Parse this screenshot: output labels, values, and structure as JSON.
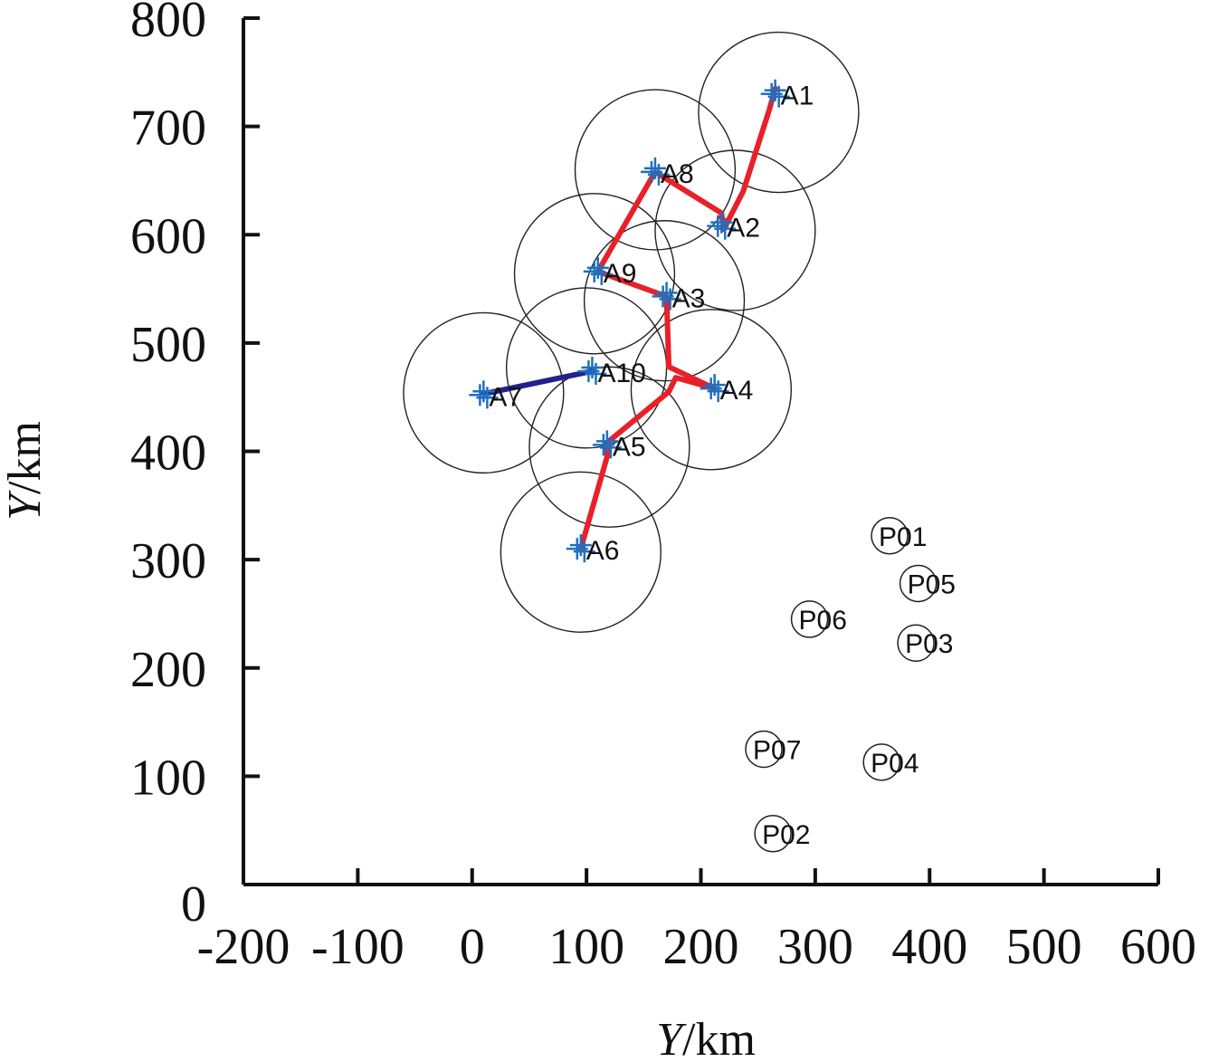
{
  "chart_data": {
    "type": "scatter",
    "xlabel_var": "Y",
    "xlabel_unit": "/km",
    "ylabel_var": "Y",
    "ylabel_unit": "/km",
    "xlim": [
      -200,
      600
    ],
    "ylim": [
      0,
      800
    ],
    "xticks": [
      "-200",
      "-100",
      "0",
      "100",
      "200",
      "300",
      "400",
      "500",
      "600"
    ],
    "yticks": [
      "0",
      "100",
      "200",
      "300",
      "400",
      "500",
      "600",
      "700",
      "800"
    ],
    "detection_radius_km": 70,
    "colors": {
      "path_main": "#e8202a",
      "path_segment": "#22228c",
      "marker": "#1f6fc0",
      "circle": "#222222"
    },
    "a_points": [
      {
        "name": "A1",
        "x": 265,
        "y": 730
      },
      {
        "name": "A2",
        "x": 218,
        "y": 608
      },
      {
        "name": "A3",
        "x": 170,
        "y": 543
      },
      {
        "name": "A4",
        "x": 212,
        "y": 458
      },
      {
        "name": "A5",
        "x": 118,
        "y": 406
      },
      {
        "name": "A6",
        "x": 95,
        "y": 310
      },
      {
        "name": "A7",
        "x": 10,
        "y": 452
      },
      {
        "name": "A8",
        "x": 160,
        "y": 658
      },
      {
        "name": "A9",
        "x": 110,
        "y": 566
      },
      {
        "name": "A10",
        "x": 105,
        "y": 474
      }
    ],
    "circles": [
      {
        "x": 268,
        "y": 713
      },
      {
        "x": 230,
        "y": 604
      },
      {
        "x": 160,
        "y": 660
      },
      {
        "x": 107,
        "y": 564
      },
      {
        "x": 168,
        "y": 539
      },
      {
        "x": 100,
        "y": 477
      },
      {
        "x": 209,
        "y": 457
      },
      {
        "x": 10,
        "y": 454
      },
      {
        "x": 120,
        "y": 404
      },
      {
        "x": 95,
        "y": 307
      }
    ],
    "main_path": [
      [
        265,
        735
      ],
      [
        260,
        716
      ],
      [
        237,
        640
      ],
      [
        220,
        605
      ],
      [
        218,
        620
      ],
      [
        160,
        658
      ],
      [
        110,
        566
      ],
      [
        170,
        543
      ],
      [
        172,
        478
      ],
      [
        212,
        458
      ],
      [
        178,
        468
      ],
      [
        172,
        455
      ],
      [
        118,
        408
      ],
      [
        118,
        395
      ],
      [
        95,
        310
      ]
    ],
    "blue_segment": [
      [
        10,
        453
      ],
      [
        105,
        474
      ]
    ],
    "p_points": [
      {
        "name": "P01",
        "x": 365,
        "y": 322
      },
      {
        "name": "P05",
        "x": 390,
        "y": 278
      },
      {
        "name": "P06",
        "x": 295,
        "y": 245
      },
      {
        "name": "P03",
        "x": 388,
        "y": 223
      },
      {
        "name": "P07",
        "x": 255,
        "y": 125
      },
      {
        "name": "P04",
        "x": 358,
        "y": 113
      },
      {
        "name": "P02",
        "x": 263,
        "y": 47
      }
    ]
  }
}
